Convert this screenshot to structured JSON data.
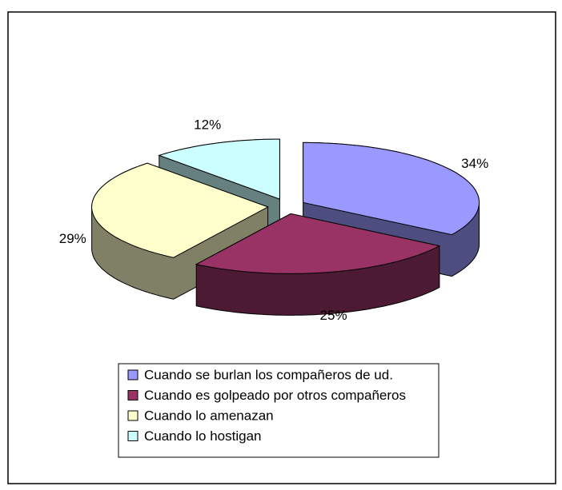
{
  "chart_data": {
    "type": "pie3d",
    "categories": [
      "Cuando se burlan los compañeros de ud.",
      "Cuando es golpeado por otros compañeros",
      "Cuando lo amenazan",
      "Cuando lo hostigan"
    ],
    "values": [
      34,
      25,
      29,
      12
    ],
    "value_labels": [
      "34%",
      "25%",
      "29%",
      "12%"
    ],
    "colors": [
      "#9999ff",
      "#993366",
      "#ffffcc",
      "#ccffff"
    ],
    "legend": "bottom"
  }
}
